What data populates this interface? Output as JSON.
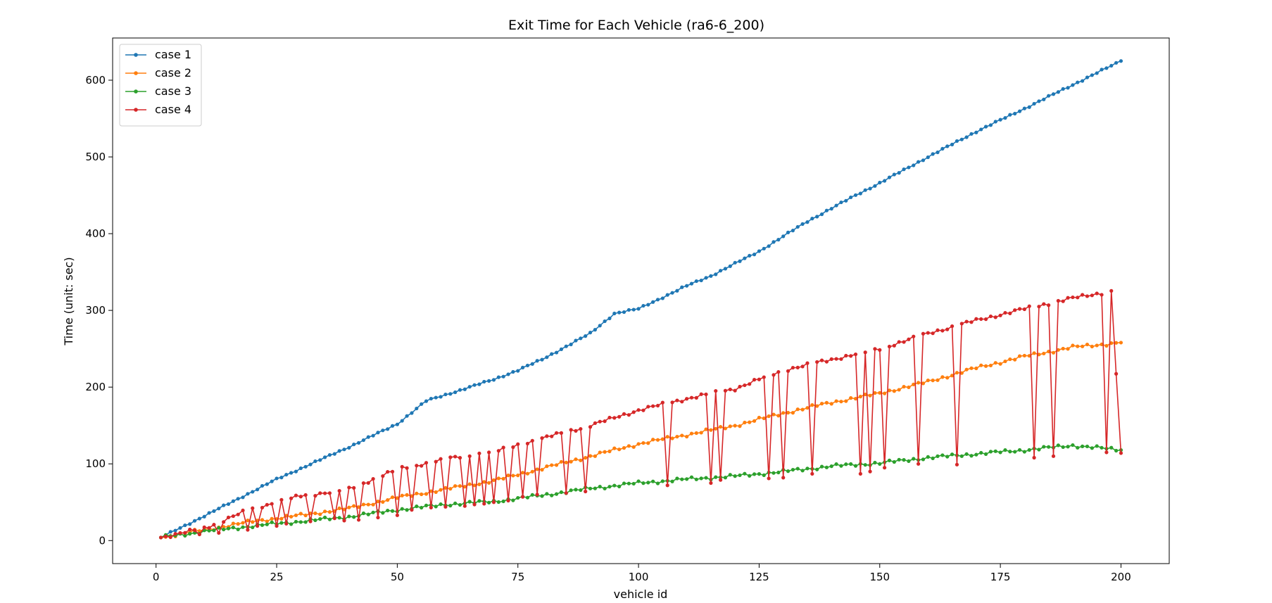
{
  "chart_data": {
    "type": "line",
    "title": "Exit Time for Each Vehicle (ra6-6_200)",
    "xlabel": "vehicle id",
    "ylabel": "Time (unit: sec)",
    "xlim": [
      -9,
      210
    ],
    "ylim": [
      -30,
      655
    ],
    "xticks": [
      0,
      25,
      50,
      75,
      100,
      125,
      150,
      175,
      200
    ],
    "yticks": [
      0,
      100,
      200,
      300,
      400,
      500,
      600
    ],
    "legend_position": "upper-left",
    "grid": false,
    "x_start": 1,
    "x_end": 200,
    "series": [
      {
        "name": "case 1",
        "color": "#1f77b4",
        "anchors": [
          [
            1,
            4
          ],
          [
            10,
            32
          ],
          [
            25,
            80
          ],
          [
            40,
            122
          ],
          [
            50,
            152
          ],
          [
            56,
            182
          ],
          [
            60,
            190
          ],
          [
            70,
            210
          ],
          [
            75,
            222
          ],
          [
            80,
            236
          ],
          [
            90,
            270
          ],
          [
            95,
            296
          ],
          [
            100,
            302
          ],
          [
            110,
            332
          ],
          [
            115,
            345
          ],
          [
            125,
            377
          ],
          [
            135,
            416
          ],
          [
            145,
            450
          ],
          [
            150,
            466
          ],
          [
            160,
            500
          ],
          [
            170,
            533
          ],
          [
            180,
            563
          ],
          [
            190,
            594
          ],
          [
            200,
            625
          ]
        ]
      },
      {
        "name": "case 2",
        "color": "#ff7f0e",
        "anchors": [
          [
            1,
            4
          ],
          [
            10,
            14
          ],
          [
            20,
            25
          ],
          [
            30,
            33
          ],
          [
            40,
            42
          ],
          [
            50,
            56
          ],
          [
            60,
            67
          ],
          [
            70,
            78
          ],
          [
            80,
            94
          ],
          [
            90,
            110
          ],
          [
            100,
            126
          ],
          [
            110,
            138
          ],
          [
            120,
            150
          ],
          [
            130,
            166
          ],
          [
            140,
            180
          ],
          [
            150,
            192
          ],
          [
            160,
            207
          ],
          [
            170,
            225
          ],
          [
            180,
            240
          ],
          [
            190,
            252
          ],
          [
            200,
            258
          ]
        ]
      },
      {
        "name": "case 3",
        "color": "#2ca02c",
        "anchors": [
          [
            1,
            4
          ],
          [
            10,
            12
          ],
          [
            20,
            19
          ],
          [
            30,
            25
          ],
          [
            40,
            31
          ],
          [
            50,
            40
          ],
          [
            60,
            47
          ],
          [
            70,
            51
          ],
          [
            80,
            59
          ],
          [
            90,
            68
          ],
          [
            100,
            75
          ],
          [
            110,
            80
          ],
          [
            120,
            84
          ],
          [
            130,
            90
          ],
          [
            140,
            97
          ],
          [
            150,
            101
          ],
          [
            160,
            108
          ],
          [
            170,
            113
          ],
          [
            180,
            118
          ],
          [
            190,
            124
          ],
          [
            200,
            118
          ]
        ]
      },
      {
        "name": "case 4",
        "color": "#d62728",
        "anchors": [
          [
            1,
            4
          ],
          [
            10,
            16
          ],
          [
            20,
            42
          ],
          [
            30,
            58
          ],
          [
            40,
            67
          ],
          [
            50,
            93
          ],
          [
            60,
            106
          ],
          [
            70,
            116
          ],
          [
            80,
            133
          ],
          [
            90,
            150
          ],
          [
            100,
            170
          ],
          [
            110,
            185
          ],
          [
            120,
            198
          ],
          [
            130,
            222
          ],
          [
            140,
            236
          ],
          [
            150,
            250
          ],
          [
            160,
            270
          ],
          [
            170,
            287
          ],
          [
            180,
            302
          ],
          [
            190,
            316
          ],
          [
            198,
            325
          ],
          [
            200,
            112
          ]
        ],
        "drop_ids": [
          9,
          13,
          19,
          21,
          25,
          27,
          32,
          37,
          39,
          42,
          46,
          50,
          53,
          57,
          60,
          64,
          66,
          68,
          70,
          73,
          76,
          79,
          85,
          89,
          106,
          115,
          117,
          127,
          130,
          136,
          146,
          148,
          151,
          158,
          166,
          182,
          186,
          197,
          200
        ],
        "drop_values": [
          8,
          10,
          14,
          19,
          19,
          22,
          25,
          29,
          26,
          27,
          30,
          33,
          40,
          43,
          44,
          45,
          47,
          48,
          50,
          52,
          57,
          60,
          62,
          64,
          72,
          75,
          79,
          81,
          82,
          87,
          87,
          90,
          95,
          100,
          99,
          108,
          110,
          115,
          114
        ]
      }
    ]
  }
}
